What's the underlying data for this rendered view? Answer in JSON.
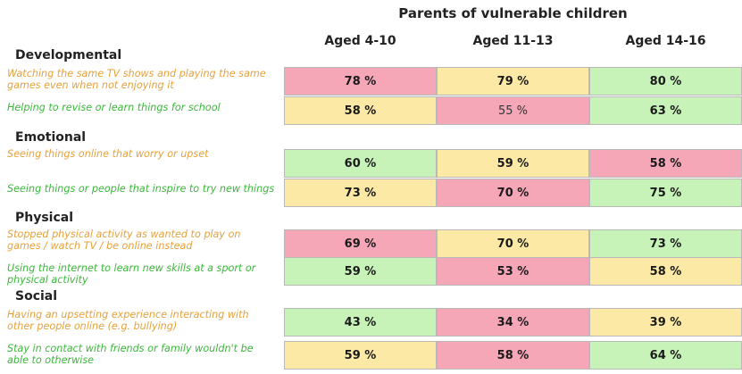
{
  "title": "Parents of vulnerable children",
  "colors": {
    "pink": "#f5a7b8",
    "yellow": "#fbe9a5",
    "green": "#c7f3b9",
    "negative_label": "#e8a13a",
    "positive_label": "#3cb83c"
  },
  "columns": [
    "Aged 4-10",
    "Aged 11-13",
    "Aged 14-16"
  ],
  "sections": [
    "Developmental",
    "Emotional",
    "Physical",
    "Social"
  ],
  "rows": [
    {
      "section": "Developmental",
      "label": "Watching the same TV shows and playing the same games even when not enjoying it",
      "kind": "negative",
      "cells": [
        {
          "text": "78 %",
          "value": 78,
          "color": "pink"
        },
        {
          "text": "79 %",
          "value": 79,
          "color": "yellow"
        },
        {
          "text": "80 %",
          "value": 80,
          "color": "green"
        }
      ]
    },
    {
      "section": "Developmental",
      "label": "Helping to revise or learn things for school",
      "kind": "positive",
      "cells": [
        {
          "text": "58 %",
          "value": 58,
          "color": "yellow"
        },
        {
          "text": "55 %",
          "value": 55,
          "color": "pink"
        },
        {
          "text": "63 %",
          "value": 63,
          "color": "green"
        }
      ]
    },
    {
      "section": "Emotional",
      "label": "Seeing things online that worry or upset",
      "kind": "negative",
      "cells": [
        {
          "text": "60 %",
          "value": 60,
          "color": "green"
        },
        {
          "text": "59 %",
          "value": 59,
          "color": "yellow"
        },
        {
          "text": "58 %",
          "value": 58,
          "color": "pink"
        }
      ]
    },
    {
      "section": "Emotional",
      "label": "Seeing things or people that inspire to try new things",
      "kind": "positive",
      "cells": [
        {
          "text": "73 %",
          "value": 73,
          "color": "yellow"
        },
        {
          "text": "70 %",
          "value": 70,
          "color": "pink"
        },
        {
          "text": "75 %",
          "value": 75,
          "color": "green"
        }
      ]
    },
    {
      "section": "Physical",
      "label": "Stopped physical activity as wanted to play on games / watch TV / be online instead",
      "kind": "negative",
      "cells": [
        {
          "text": "69 %",
          "value": 69,
          "color": "pink"
        },
        {
          "text": "70 %",
          "value": 70,
          "color": "yellow"
        },
        {
          "text": "73 %",
          "value": 73,
          "color": "green"
        }
      ]
    },
    {
      "section": "Physical",
      "label": "Using the internet to learn new skills at a sport or physical activity",
      "kind": "positive",
      "cells": [
        {
          "text": "59 %",
          "value": 59,
          "color": "green"
        },
        {
          "text": "53 %",
          "value": 53,
          "color": "pink"
        },
        {
          "text": "58 %",
          "value": 58,
          "color": "yellow"
        }
      ]
    },
    {
      "section": "Social",
      "label": "Having an upsetting experience interacting with other people online (e.g. bullying)",
      "kind": "negative",
      "cells": [
        {
          "text": "43 %",
          "value": 43,
          "color": "green"
        },
        {
          "text": "34 %",
          "value": 34,
          "color": "pink"
        },
        {
          "text": "39 %",
          "value": 39,
          "color": "yellow"
        }
      ]
    },
    {
      "section": "Social",
      "label": "Stay in contact with friends or family wouldn't be able to otherwise",
      "kind": "positive",
      "cells": [
        {
          "text": "59 %",
          "value": 59,
          "color": "yellow"
        },
        {
          "text": "58 %",
          "value": 58,
          "color": "pink"
        },
        {
          "text": "64 %",
          "value": 64,
          "color": "green"
        }
      ]
    }
  ],
  "chart_data": {
    "type": "table",
    "title": "Parents of vulnerable children",
    "categories": [
      "Watching the same TV shows and playing the same games even when not enjoying it",
      "Helping to revise or learn things for school",
      "Seeing things online that worry or upset",
      "Seeing things or people that inspire to try new things",
      "Stopped physical activity as wanted to play on games / watch TV / be online instead",
      "Using the internet to learn new skills at a sport or physical activity",
      "Having an upsetting experience interacting with other people online (e.g. bullying)",
      "Stay in contact with friends or family wouldn't be able to otherwise"
    ],
    "series": [
      {
        "name": "Aged 4-10",
        "values": [
          78,
          58,
          60,
          73,
          69,
          59,
          43,
          59
        ]
      },
      {
        "name": "Aged 11-13",
        "values": [
          79,
          55,
          59,
          70,
          70,
          53,
          34,
          58
        ]
      },
      {
        "name": "Aged 14-16",
        "values": [
          80,
          63,
          58,
          75,
          73,
          58,
          39,
          64
        ]
      }
    ],
    "unit": "%"
  }
}
